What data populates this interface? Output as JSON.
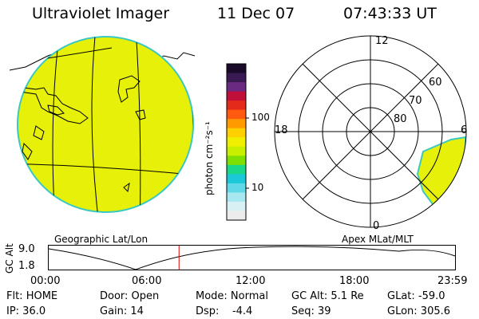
{
  "header": {
    "instrument": "Ultraviolet Imager",
    "date": "11 Dec 07",
    "time": "07:43:33 UT"
  },
  "colorbar": {
    "unit_label": "photon cm⁻²s⁻¹",
    "tick_100": "100",
    "tick_10": "10",
    "colors": [
      "#1a0a2a",
      "#3a1a52",
      "#6a2a82",
      "#c0103a",
      "#e42a1a",
      "#ff5a10",
      "#ff9a00",
      "#ffd000",
      "#eef000",
      "#c8ee00",
      "#7ee000",
      "#1ad88a",
      "#1ac8d8",
      "#60d8e8",
      "#a8e8f0",
      "#d8f0f4",
      "#ececec"
    ]
  },
  "left_map": {
    "label": "Geographic Lat/Lon",
    "fill_color": "#e6f008"
  },
  "right_map": {
    "label": "Apex MLat/MLT",
    "mlt_12": "12",
    "mlt_18": "18",
    "mlt_6": "6",
    "mlt_0": "0",
    "lat_60": "60",
    "lat_70": "70",
    "lat_80": "80"
  },
  "altitude_plot": {
    "ylabel": "GC Alt",
    "y_top": "9.0",
    "y_bottom": "1.8",
    "x_ticks": [
      "00:00",
      "06:00",
      "12:00",
      "18:00",
      "23:59"
    ],
    "current_time_hours": 7.73
  },
  "status": {
    "flt": "Flt: HOME",
    "ip": "IP: 36.0",
    "door": "Door: Open",
    "gain": "Gain: 14",
    "mode": "Mode: Normal",
    "dsp": "Dsp:    -4.4",
    "gc_alt": "GC Alt: 5.1 Re",
    "seq": "Seq: 39",
    "glat": "GLat: -59.0",
    "glon": "GLon: 305.6"
  }
}
